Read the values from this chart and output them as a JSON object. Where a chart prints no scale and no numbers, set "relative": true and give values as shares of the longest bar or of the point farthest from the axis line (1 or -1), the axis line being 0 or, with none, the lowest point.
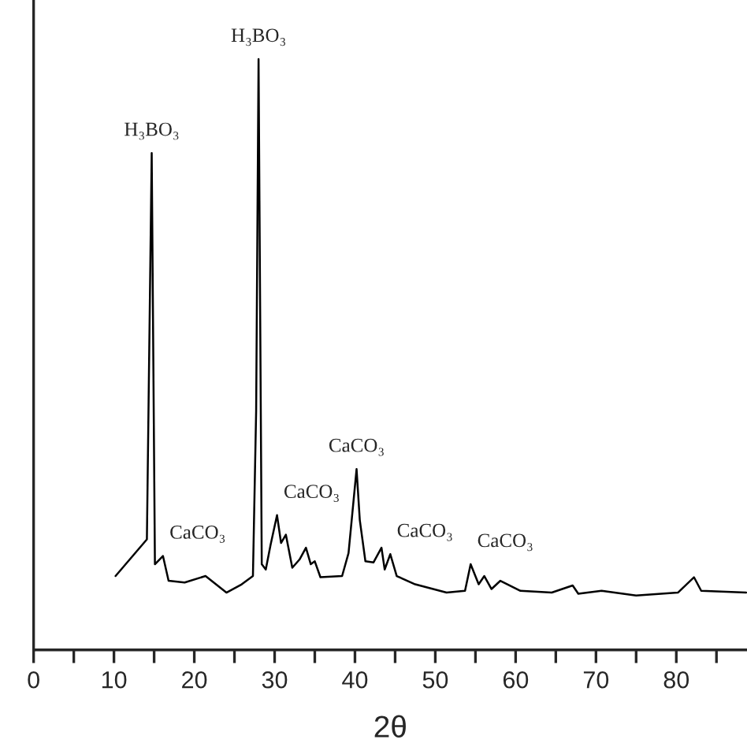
{
  "chart_data": {
    "type": "line",
    "xlabel": "2θ",
    "relative": true,
    "xlim": [
      0,
      88.8
    ],
    "xticks": [
      0,
      {
        "value": 5,
        "label": null
      },
      10,
      {
        "value": 15,
        "label": null
      },
      20,
      {
        "value": 25,
        "label": null
      },
      30,
      {
        "value": 35,
        "label": null
      },
      40,
      {
        "value": 45,
        "label": null
      },
      50,
      {
        "value": 55,
        "label": null
      },
      60,
      {
        "value": 65,
        "label": null
      },
      70,
      {
        "value": 75,
        "label": null
      },
      80,
      {
        "value": 85,
        "label": null
      }
    ],
    "grid": false,
    "legend": false,
    "marker": "none",
    "line_style": "solid",
    "series": [
      {
        "color": "#000000",
        "x": [
          10.2,
          14.1,
          14.7,
          15.1,
          16.1,
          16.8,
          18.8,
          21.4,
          24.0,
          25.9,
          27.3,
          27.7,
          28.0,
          28.4,
          28.9,
          29.5,
          30.3,
          30.8,
          31.4,
          32.2,
          33.1,
          33.9,
          34.5,
          35.0,
          35.7,
          38.4,
          39.2,
          40.2,
          40.6,
          41.3,
          42.3,
          43.3,
          43.7,
          44.4,
          45.2,
          47.5,
          51.4,
          53.7,
          54.4,
          55.4,
          56.1,
          57.0,
          58.1,
          60.6,
          64.5,
          67.1,
          67.8,
          70.7,
          75.0,
          80.2,
          82.2,
          83.1,
          88.7
        ],
        "values": [
          0.125,
          0.187,
          0.841,
          0.145,
          0.159,
          0.117,
          0.114,
          0.125,
          0.097,
          0.111,
          0.125,
          0.404,
          1.0,
          0.145,
          0.136,
          0.178,
          0.228,
          0.181,
          0.195,
          0.139,
          0.153,
          0.173,
          0.145,
          0.15,
          0.123,
          0.125,
          0.164,
          0.306,
          0.22,
          0.15,
          0.148,
          0.173,
          0.136,
          0.162,
          0.125,
          0.111,
          0.097,
          0.1,
          0.145,
          0.111,
          0.125,
          0.103,
          0.117,
          0.1,
          0.097,
          0.109,
          0.095,
          0.1,
          0.092,
          0.097,
          0.123,
          0.1,
          0.097
        ]
      }
    ],
    "annotations": [
      {
        "text": "H₃BO₃",
        "x": 14.7,
        "y": 0.841
      },
      {
        "text": "CaCO₃",
        "x": 16.1,
        "y": 0.159
      },
      {
        "text": "H₃BO₃",
        "x": 28.0,
        "y": 1.0
      },
      {
        "text": "CaCO₃",
        "x": 30.3,
        "y": 0.228
      },
      {
        "text": "CaCO₃",
        "x": 40.2,
        "y": 0.306
      },
      {
        "text": "CaCO₃",
        "x": 44.4,
        "y": 0.162
      },
      {
        "text": "CaCO₃",
        "x": 54.4,
        "y": 0.145
      }
    ]
  }
}
